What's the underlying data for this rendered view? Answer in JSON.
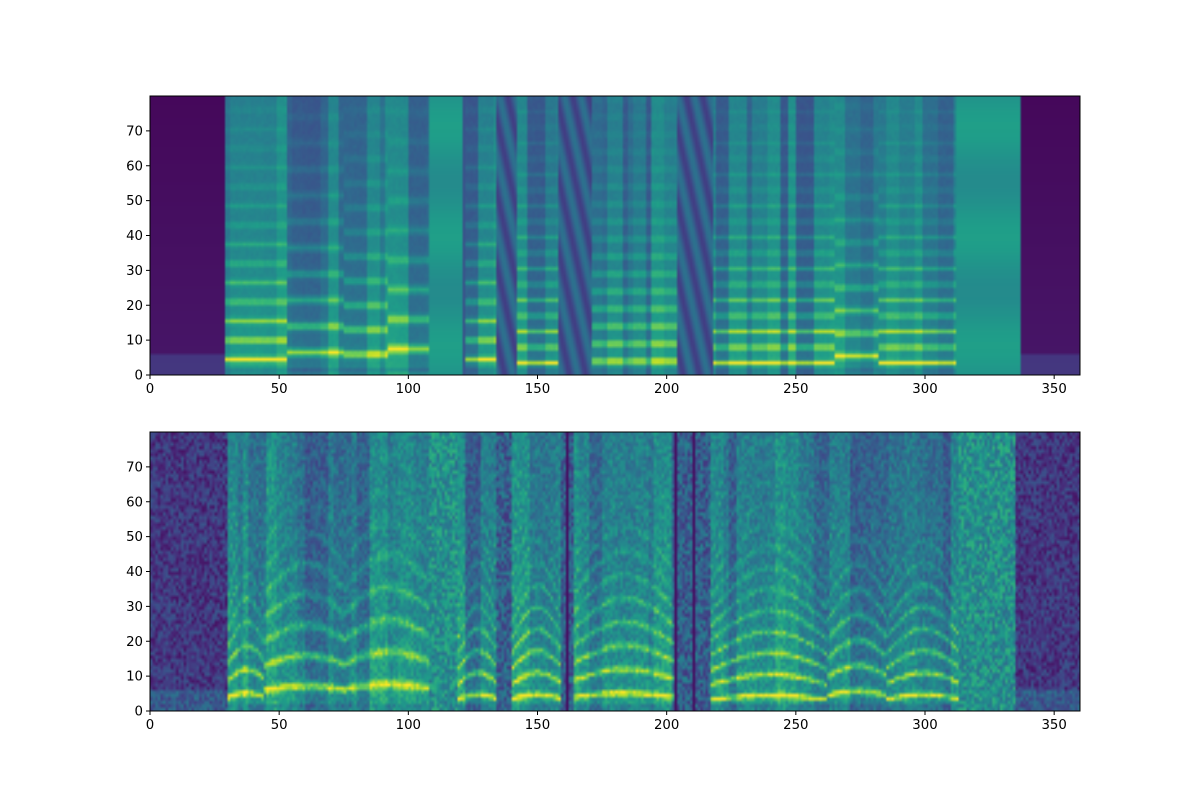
{
  "chart_data": [
    {
      "type": "heatmap",
      "title": "",
      "xlabel": "",
      "ylabel": "",
      "xlim": [
        0,
        360
      ],
      "ylim": [
        0,
        80
      ],
      "x_ticks": [
        0,
        50,
        100,
        150,
        200,
        250,
        300,
        350
      ],
      "y_ticks": [
        0,
        10,
        20,
        30,
        40,
        50,
        60,
        70
      ],
      "colormap": "viridis",
      "grid": false,
      "style": "smooth",
      "silence": [
        [
          0,
          29
        ],
        [
          337,
          360
        ]
      ],
      "segments": [
        {
          "start": 29,
          "end": 42,
          "f0": 4.0
        },
        {
          "start": 42,
          "end": 53,
          "f0": 4.0
        },
        {
          "start": 53,
          "end": 75,
          "f0": 6.0
        },
        {
          "start": 75,
          "end": 92,
          "f0": 5.5
        },
        {
          "start": 92,
          "end": 108,
          "f0": 7.0
        },
        {
          "start": 122,
          "end": 134,
          "f0": 4.0
        },
        {
          "start": 142,
          "end": 158,
          "f0": 3.0
        },
        {
          "start": 171,
          "end": 204,
          "f0": 3.5
        },
        {
          "start": 218,
          "end": 265,
          "f0": 3.0
        },
        {
          "start": 265,
          "end": 282,
          "f0": 5.0
        },
        {
          "start": 282,
          "end": 312,
          "f0": 3.0
        }
      ],
      "fills": [
        [
          108,
          121
        ],
        [
          312,
          337
        ]
      ],
      "gaps": [
        [
          134,
          142
        ],
        [
          158,
          171
        ],
        [
          204,
          218
        ]
      ]
    },
    {
      "type": "heatmap",
      "title": "",
      "xlabel": "",
      "ylabel": "",
      "xlim": [
        0,
        360
      ],
      "ylim": [
        0,
        80
      ],
      "x_ticks": [
        0,
        50,
        100,
        150,
        200,
        250,
        300,
        350
      ],
      "y_ticks": [
        0,
        10,
        20,
        30,
        40,
        50,
        60,
        70
      ],
      "colormap": "viridis",
      "grid": false,
      "style": "noisy",
      "silence": [
        [
          0,
          30
        ],
        [
          335,
          360
        ]
      ],
      "segments": [
        {
          "start": 30,
          "end": 44,
          "f0": 3.5
        },
        {
          "start": 44,
          "end": 76,
          "f0": 5.5
        },
        {
          "start": 76,
          "end": 108,
          "f0": 6.0
        },
        {
          "start": 119,
          "end": 134,
          "f0": 3.0
        },
        {
          "start": 140,
          "end": 159,
          "f0": 3.0
        },
        {
          "start": 164,
          "end": 203,
          "f0": 3.5
        },
        {
          "start": 217,
          "end": 262,
          "f0": 2.8
        },
        {
          "start": 262,
          "end": 285,
          "f0": 4.0
        },
        {
          "start": 285,
          "end": 313,
          "f0": 3.0
        }
      ],
      "fills": [
        [
          108,
          119
        ],
        [
          313,
          335
        ]
      ],
      "gaps": [
        [
          134,
          140
        ],
        [
          159,
          164
        ],
        [
          203,
          217
        ]
      ]
    }
  ]
}
